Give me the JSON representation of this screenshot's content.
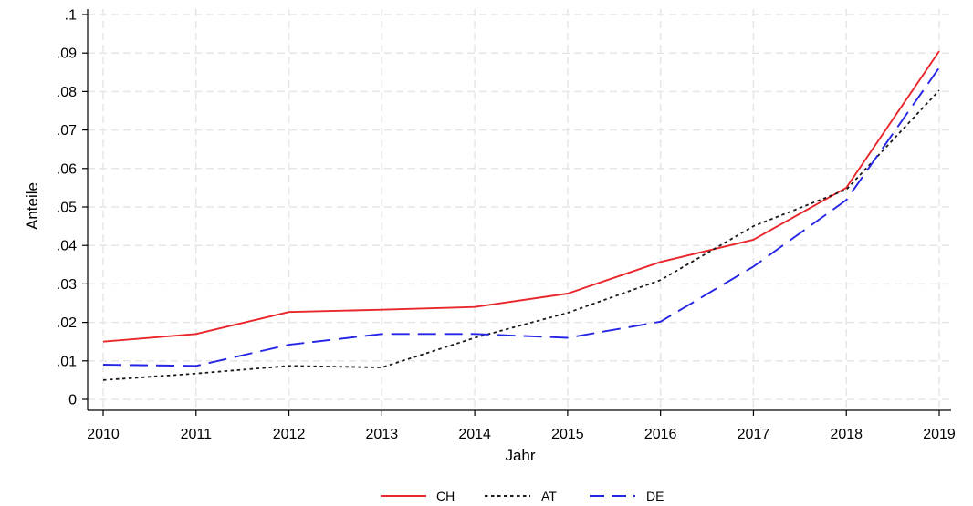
{
  "chart_data": {
    "type": "line",
    "title": "",
    "xlabel": "Jahr",
    "ylabel": "Anteile",
    "x": [
      2010,
      2011,
      2012,
      2013,
      2014,
      2015,
      2016,
      2017,
      2018,
      2019
    ],
    "xticks": [
      "2010",
      "2011",
      "2012",
      "2013",
      "2014",
      "2015",
      "2016",
      "2017",
      "2018",
      "2019"
    ],
    "yticks": [
      {
        "value": 0,
        "label": "0"
      },
      {
        "value": 0.01,
        "label": ".01"
      },
      {
        "value": 0.02,
        "label": ".02"
      },
      {
        "value": 0.03,
        "label": ".03"
      },
      {
        "value": 0.04,
        "label": ".04"
      },
      {
        "value": 0.05,
        "label": ".05"
      },
      {
        "value": 0.06,
        "label": ".06"
      },
      {
        "value": 0.07,
        "label": ".07"
      },
      {
        "value": 0.08,
        "label": ".08"
      },
      {
        "value": 0.09,
        "label": ".09"
      },
      {
        "value": 0.1,
        "label": ".1"
      }
    ],
    "ylim": [
      0,
      0.1
    ],
    "grid": true,
    "legend_position": "bottom",
    "series": [
      {
        "name": "CH",
        "color": "#e8262b",
        "dash": "solid",
        "values": [
          0.015,
          0.017,
          0.0227,
          0.0233,
          0.024,
          0.0275,
          0.0357,
          0.0415,
          0.055,
          0.0905
        ]
      },
      {
        "name": "AT",
        "color": "#1a1a1a",
        "dash": "dotted",
        "values": [
          0.005,
          0.0067,
          0.0087,
          0.0083,
          0.016,
          0.0225,
          0.031,
          0.045,
          0.0545,
          0.0803
        ]
      },
      {
        "name": "DE",
        "color": "#2525e6",
        "dash": "dashed",
        "values": [
          0.009,
          0.0087,
          0.0142,
          0.017,
          0.017,
          0.016,
          0.0202,
          0.0345,
          0.0518,
          0.0862
        ]
      }
    ]
  }
}
